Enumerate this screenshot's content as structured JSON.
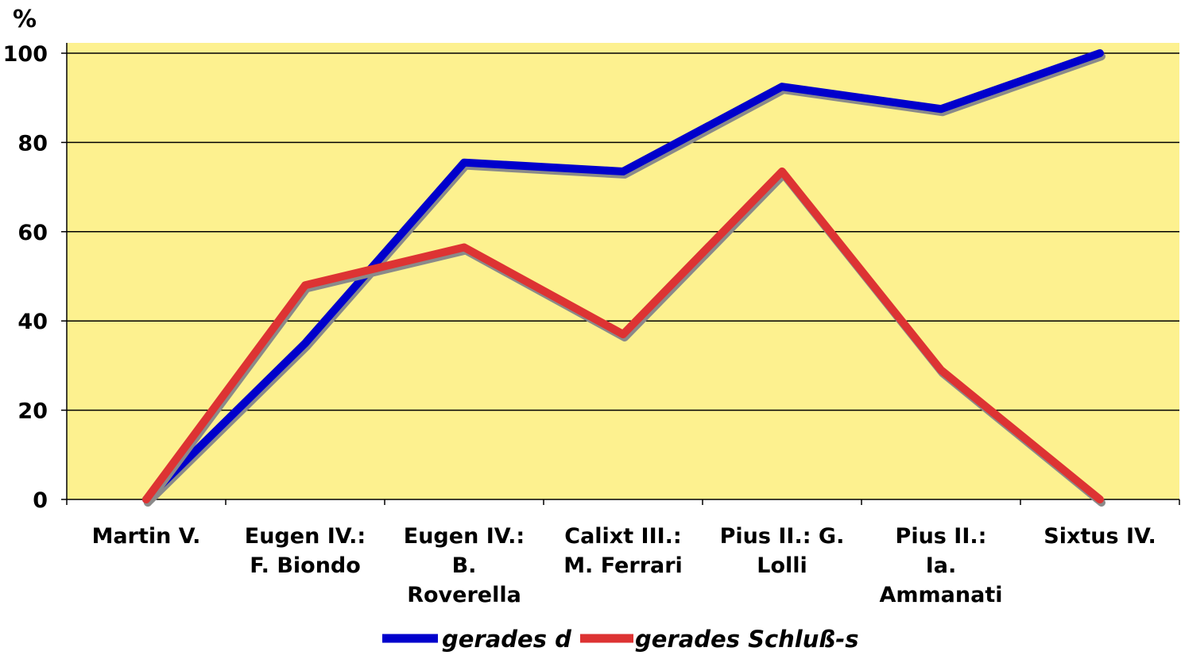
{
  "chart_data": {
    "type": "line",
    "ylabel": "%",
    "ylim": [
      0,
      100
    ],
    "yticks": [
      0,
      20,
      40,
      60,
      80,
      100
    ],
    "categories": [
      [
        "Martin V."
      ],
      [
        "Eugen IV.:",
        "F. Biondo"
      ],
      [
        "Eugen IV.:",
        "B.",
        "Roverella"
      ],
      [
        "Calixt III.:",
        "M. Ferrari"
      ],
      [
        "Pius II.: G.",
        "Lolli"
      ],
      [
        "Pius II.:",
        "Ia.",
        "Ammanati"
      ],
      [
        "Sixtus IV."
      ]
    ],
    "series": [
      {
        "name": "gerades d",
        "color": "#0000cc",
        "values": [
          0,
          35,
          75.5,
          73.5,
          92.5,
          87.5,
          100
        ]
      },
      {
        "name": "gerades Schluß-s",
        "color": "#dd3333",
        "values": [
          0,
          48,
          56.5,
          37,
          73.5,
          29,
          0
        ]
      }
    ],
    "plot_background": "#fdf18f",
    "grid": true,
    "legend_position": "bottom"
  }
}
